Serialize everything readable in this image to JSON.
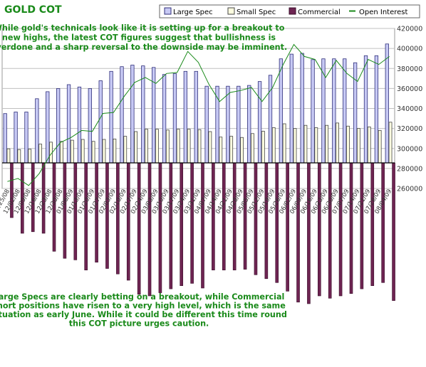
{
  "chart_data": {
    "type": "bar",
    "title": "GOLD COT",
    "annotations": {
      "top": [
        "While gold's technicals look like it is setting up for a breakout to",
        "new highs, the latest COT figures suggest that bullishness is",
        "overdone and a sharp reversal to the downside may be imminent."
      ],
      "bottom": [
        "Large Specs are clearly betting on a breakout, while Commercial",
        "short positions have risen to a very high level, which is the same",
        "situation as early June. While it could be different this time round",
        "this COT picture urges caution."
      ]
    },
    "legend": {
      "placement": "top-right",
      "entries": [
        "Large Spec",
        "Small Spec",
        "Commercial",
        "Open Interest"
      ]
    },
    "colors": {
      "large_spec": "#c7c9f4",
      "small_spec": "#fdfde0",
      "commercial": "#6e2452",
      "open_interest": "#1a8a1a",
      "text": "#1a8a1a"
    },
    "categories": [
      "11/25/08",
      "12/02/08",
      "12/09/08",
      "12/16/08",
      "12/23/08",
      "12/30/08",
      "01/06/09",
      "01/13/09",
      "01/20/09",
      "01/27/09",
      "02/03/09",
      "02/10/09",
      "02/17/09",
      "02/24/09",
      "03/03/09",
      "03/10/09",
      "03/17/09",
      "03/24/09",
      "03/31/09",
      "04/07/09",
      "04/14/09",
      "04/21/09",
      "04/28/09",
      "05/05/09",
      "05/12/09",
      "05/19/09",
      "05/26/09",
      "06/02/09",
      "06/09/09",
      "06/16/09",
      "06/23/09",
      "06/30/09",
      "07/07/09",
      "07/14/09",
      "07/21/09",
      "07/28/09",
      "08/04/09"
    ],
    "xtick_labels": [
      "11/25/08",
      "12/02/08",
      "12/09/08",
      "12/16/08",
      "12/23/08",
      "12/30/08",
      "01/06/09",
      "01/13/09",
      "01/20/09",
      "01/27/09",
      "02/03/09",
      "02/10/09",
      "02/17/09",
      "02/24/09",
      "03/03/09",
      "03/10/09",
      "03/17/09",
      "03/24/09",
      "03/31/09",
      "04/07/09",
      "04/14/09",
      "04/21/09",
      "04/28/09",
      "05/05/09",
      "05/12/09",
      "05/19/09",
      "05/26/09",
      "06/02/09",
      "06/09/09",
      "06/16/09",
      "06/23/09",
      "06/30/09",
      "07/07/09",
      "07/14/09",
      "07/21/09",
      "07/28/09",
      "08/04/09"
    ],
    "ytick_labels": [
      "260000",
      "280000",
      "300000",
      "320000",
      "340000",
      "360000",
      "380000",
      "400000",
      "420000"
    ],
    "y_right_range": [
      260000,
      420000
    ],
    "commercial_y_range": [
      -180000,
      155000
    ],
    "open_interest_scale": [
      260000,
      420000
    ],
    "grid": true,
    "series": [
      {
        "name": "Large Spec",
        "values": [
          63000,
          65000,
          65000,
          82000,
          91000,
          95000,
          100000,
          97000,
          95000,
          105000,
          117000,
          123000,
          125000,
          124000,
          122000,
          113000,
          114000,
          117000,
          117000,
          98000,
          98000,
          98000,
          98000,
          99000,
          104000,
          112000,
          133000,
          139000,
          140000,
          132000,
          133000,
          133000,
          133000,
          128000,
          137000,
          137000,
          152000
        ]
      },
      {
        "name": "Small Spec",
        "values": [
          18000,
          17000,
          17500,
          24000,
          26500,
          27500,
          29000,
          30000,
          27500,
          30000,
          30500,
          34000,
          40000,
          43000,
          43000,
          42000,
          43000,
          43000,
          42500,
          40000,
          33000,
          34000,
          32500,
          37500,
          40500,
          45000,
          50000,
          44000,
          48000,
          45000,
          48000,
          51000,
          47000,
          44000,
          46000,
          41500,
          52000
        ]
      },
      {
        "name": "Commercial",
        "values": [
          -70000,
          -90000,
          -88000,
          -90000,
          -113000,
          -122000,
          -124000,
          -137000,
          -127000,
          -135000,
          -142000,
          -150000,
          -168000,
          -170000,
          -166000,
          -161000,
          -157000,
          -154000,
          -160000,
          -137000,
          -137000,
          -137000,
          -136000,
          -143000,
          -148000,
          -153000,
          -164000,
          -178000,
          -180000,
          -170000,
          -173000,
          -170000,
          -167000,
          -161000,
          -157000,
          -153000,
          -176000
        ]
      },
      {
        "name": "Open Interest",
        "values": [
          267000,
          270000,
          263000,
          275000,
          293000,
          306000,
          311000,
          318000,
          317000,
          335000,
          336000,
          352000,
          366000,
          371000,
          365000,
          375000,
          376000,
          397000,
          386000,
          364000,
          347000,
          356000,
          358000,
          361000,
          347000,
          361000,
          384000,
          404000,
          392000,
          389000,
          371000,
          388000,
          375000,
          367000,
          389000,
          384000,
          392000
        ]
      }
    ]
  }
}
